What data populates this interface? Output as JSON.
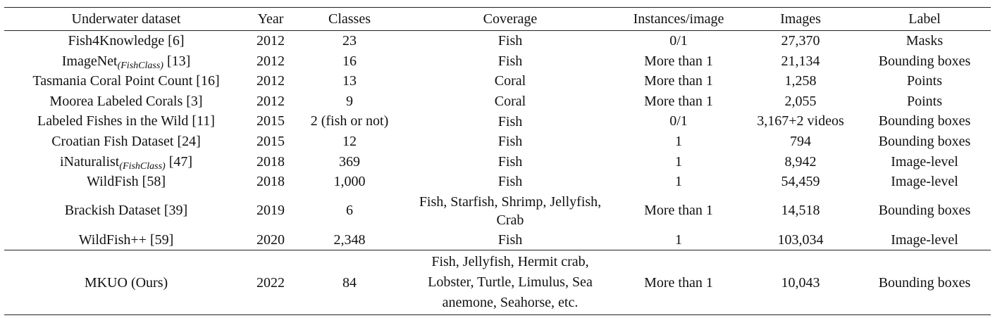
{
  "table": {
    "header": [
      "Underwater dataset",
      "Year",
      "Classes",
      "Coverage",
      "Instances/image",
      "Images",
      "Label"
    ],
    "rows": [
      [
        {
          "name": "Fish4Knowledge [6]"
        },
        "2012",
        "23",
        "Fish",
        "0/1",
        "27,370",
        "Masks"
      ],
      [
        {
          "name": "ImageNet",
          "sub": "(FishClass)",
          "ref": "[13]"
        },
        "2012",
        "16",
        "Fish",
        "More than 1",
        "21,134",
        "Bounding boxes"
      ],
      [
        {
          "name": "Tasmania Coral Point Count [16]"
        },
        "2012",
        "13",
        "Coral",
        "More than 1",
        "1,258",
        "Points"
      ],
      [
        {
          "name": "Moorea Labeled Corals [3]"
        },
        "2012",
        "9",
        "Coral",
        "More than 1",
        "2,055",
        "Points"
      ],
      [
        {
          "name": "Labeled Fishes in the Wild [11]"
        },
        "2015",
        "2 (fish or not)",
        "Fish",
        "0/1",
        "3,167+2 videos",
        "Bounding boxes"
      ],
      [
        {
          "name": "Croatian Fish Dataset [24]"
        },
        "2015",
        "12",
        "Fish",
        "1",
        "794",
        "Bounding boxes"
      ],
      [
        {
          "name": "iNaturalist",
          "sub": "(FishClass)",
          "ref": "[47]"
        },
        "2018",
        "369",
        "Fish",
        "1",
        "8,942",
        "Image-level"
      ],
      [
        {
          "name": "WildFish [58]"
        },
        "2018",
        "1,000",
        "Fish",
        "1",
        "54,459",
        "Image-level"
      ],
      [
        {
          "name": "Brackish Dataset [39]"
        },
        "2019",
        "6",
        "Fish, Starfish, Shrimp, Jellyfish, Crab",
        "More than 1",
        "14,518",
        "Bounding boxes"
      ],
      [
        {
          "name": "WildFish++ [59]"
        },
        "2020",
        "2,348",
        "Fish",
        "1",
        "103,034",
        "Image-level"
      ],
      [
        {
          "name": "MKUO (Ours)"
        },
        "2022",
        "84",
        "Fish, Jellyfish, Hermit crab, Lobster, Turtle, Limulus, Sea anemone, Seahorse, etc.",
        "More than 1",
        "10,043",
        "Bounding boxes"
      ]
    ]
  }
}
